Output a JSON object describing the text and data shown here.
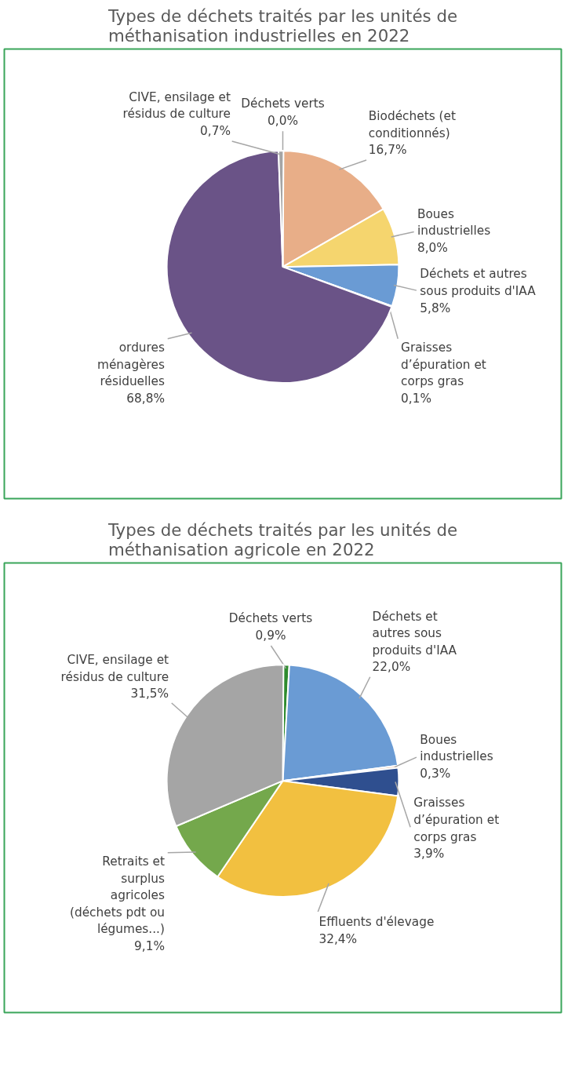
{
  "chart_data": [
    {
      "type": "pie",
      "title": "Types de déchets traités par les unités de\nméthanisation  industrielles en 2022",
      "categories": [
        "Déchets verts",
        "Biodéchets (et\nconditionnés)",
        "Boues\nindustrielles",
        "Déchets et autres\nsous produits d'IAA",
        "Graisses\nd’épuration et\ncorps gras",
        "ordures\nménagères\nrésiduelles",
        "CIVE, ensilage et\nrésidus de culture"
      ],
      "values": [
        0.0,
        16.7,
        8.0,
        5.8,
        0.1,
        68.8,
        0.7
      ],
      "value_labels": [
        "0,0%",
        "16,7%",
        "8,0%",
        "5,8%",
        "0,1%",
        "68,8%",
        "0,7%"
      ],
      "colors": [
        "#3a8f3a",
        "#e8ae88",
        "#f5d56e",
        "#6a9bd4",
        "#2f4f8f",
        "#6a5387",
        "#a5a5a5"
      ]
    },
    {
      "type": "pie",
      "title": "Types de déchets traités par les unités de\nméthanisation agricole en 2022",
      "categories": [
        "Déchets verts",
        "Déchets et\nautres sous\nproduits d'IAA",
        "Boues\nindustrielles",
        "Graisses\nd’épuration et\ncorps gras",
        "Effluents d'élevage",
        "Retraits et\nsurplus\nagricoles\n(déchets pdt ou\nlégumes...)",
        "CIVE, ensilage et\nrésidus de culture"
      ],
      "values": [
        0.9,
        22.0,
        0.3,
        3.9,
        32.4,
        9.1,
        31.5
      ],
      "value_labels": [
        "0,9%",
        "22,0%",
        "0,3%",
        "3,9%",
        "32,4%",
        "9,1%",
        "31,5%"
      ],
      "colors": [
        "#2e8b2e",
        "#6a9bd4",
        "#e8ae88",
        "#2f4f8f",
        "#f2c040",
        "#74a84c",
        "#a5a5a5"
      ]
    }
  ]
}
